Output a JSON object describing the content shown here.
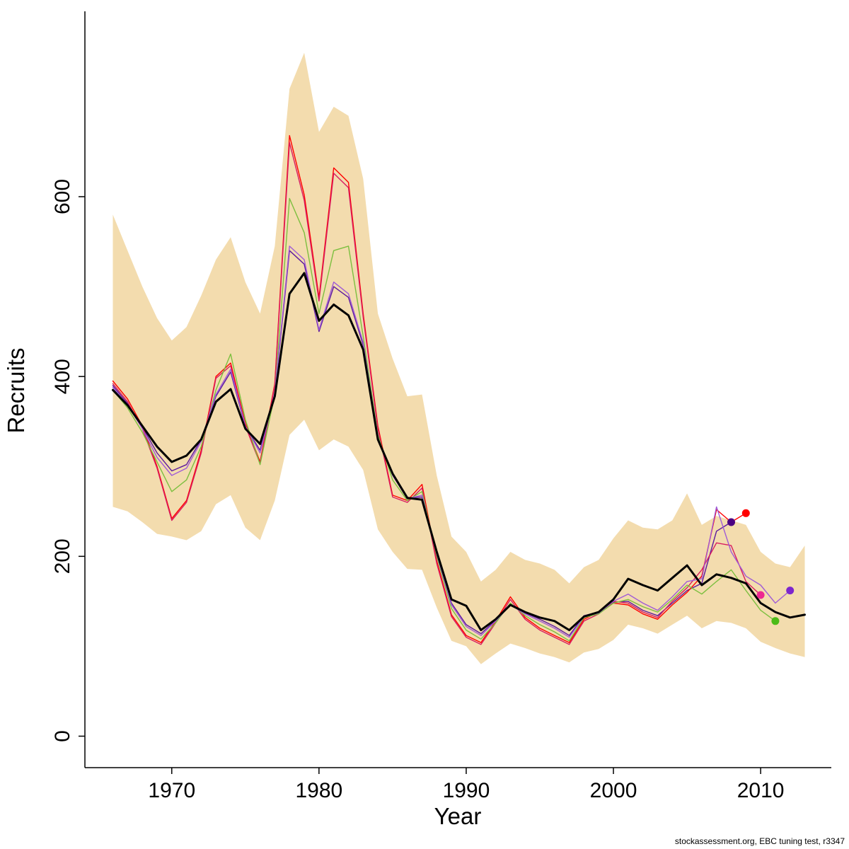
{
  "page": {
    "background": "#ffffff"
  },
  "footer": {
    "credit": "stockassessment.org, EBC tuning test, r3347"
  },
  "chart_data": {
    "type": "line",
    "title": "",
    "xlabel": "Year",
    "ylabel": "Recruits",
    "x_ticks": [
      1970,
      1980,
      1990,
      2000,
      2010
    ],
    "y_ticks": [
      0,
      200,
      400,
      600
    ],
    "xlim": [
      1964.1,
      2014.8
    ],
    "ylim": [
      -35,
      803
    ],
    "grid": false,
    "legend": "none",
    "band": {
      "label": "confidence-band",
      "color": "#F3DCAE",
      "years_start": 1966,
      "upper": [
        580,
        540,
        500,
        465,
        440,
        455,
        490,
        530,
        555,
        505,
        470,
        545,
        720,
        760,
        672,
        700,
        690,
        620,
        470,
        420,
        378,
        380,
        290,
        222,
        205,
        172,
        185,
        205,
        196,
        192,
        185,
        170,
        188,
        196,
        220,
        240,
        232,
        230,
        240,
        270,
        235,
        245,
        240,
        235,
        205,
        192,
        188,
        212
      ],
      "lower": [
        255,
        250,
        238,
        225,
        222,
        218,
        228,
        258,
        268,
        232,
        218,
        262,
        335,
        352,
        318,
        330,
        322,
        296,
        230,
        205,
        186,
        185,
        143,
        106,
        100,
        80,
        92,
        103,
        98,
        92,
        88,
        82,
        93,
        97,
        107,
        124,
        120,
        114,
        124,
        134,
        120,
        128,
        126,
        120,
        105,
        98,
        92,
        88
      ]
    },
    "series": [
      {
        "id": "retro-2008",
        "label": "retrospective peel ending 2008",
        "color": "#5D1A9E",
        "dot_color": "#4B0082",
        "width": 1.4,
        "end_dot": true,
        "years_start": 1966,
        "values": [
          390,
          370,
          344,
          315,
          295,
          302,
          330,
          378,
          405,
          344,
          318,
          380,
          540,
          525,
          450,
          500,
          488,
          435,
          330,
          292,
          265,
          266,
          204,
          148,
          124,
          114,
          129,
          147,
          137,
          130,
          122,
          112,
          134,
          138,
          149,
          150,
          140,
          134,
          148,
          162,
          170,
          228,
          238
        ]
      },
      {
        "id": "retro-2009",
        "label": "retrospective peel ending 2009",
        "color": "#FF0000",
        "dot_color": "#FF0000",
        "width": 1.4,
        "end_dot": true,
        "years_start": 1966,
        "values": [
          395,
          375,
          345,
          300,
          242,
          262,
          318,
          400,
          415,
          348,
          305,
          392,
          668,
          602,
          488,
          632,
          616,
          470,
          345,
          268,
          262,
          280,
          195,
          135,
          112,
          104,
          128,
          155,
          132,
          120,
          112,
          104,
          130,
          138,
          148,
          146,
          136,
          130,
          146,
          160,
          178,
          252,
          238,
          248
        ]
      },
      {
        "id": "retro-2010",
        "label": "retrospective peel ending 2010",
        "color": "#D81B60",
        "dot_color": "#ED2891",
        "width": 1.4,
        "end_dot": true,
        "years_start": 1966,
        "values": [
          392,
          372,
          342,
          298,
          240,
          260,
          315,
          398,
          412,
          345,
          303,
          390,
          660,
          596,
          484,
          626,
          610,
          466,
          342,
          266,
          260,
          276,
          192,
          133,
          110,
          102,
          126,
          152,
          130,
          118,
          110,
          102,
          128,
          136,
          150,
          148,
          138,
          132,
          150,
          165,
          185,
          215,
          212,
          172,
          157
        ]
      },
      {
        "id": "retro-2011",
        "label": "retrospective peel ending 2011",
        "color": "#7CBF3F",
        "dot_color": "#4CBB17",
        "width": 1.4,
        "end_dot": true,
        "years_start": 1966,
        "values": [
          385,
          365,
          338,
          305,
          272,
          285,
          322,
          385,
          425,
          352,
          302,
          380,
          598,
          560,
          470,
          540,
          545,
          445,
          335,
          285,
          262,
          272,
          200,
          142,
          118,
          108,
          126,
          148,
          134,
          124,
          116,
          106,
          132,
          136,
          148,
          152,
          144,
          138,
          152,
          168,
          158,
          172,
          185,
          162,
          140,
          128
        ]
      },
      {
        "id": "retro-2012",
        "label": "retrospective peel ending 2012",
        "color": "#A05BD6",
        "dot_color": "#7D26CD",
        "width": 1.4,
        "end_dot": true,
        "years_start": 1966,
        "values": [
          388,
          368,
          342,
          310,
          290,
          298,
          328,
          380,
          408,
          345,
          315,
          382,
          545,
          530,
          452,
          505,
          492,
          438,
          332,
          290,
          264,
          268,
          202,
          146,
          122,
          112,
          128,
          146,
          136,
          128,
          120,
          110,
          133,
          137,
          150,
          158,
          148,
          140,
          155,
          172,
          175,
          255,
          205,
          178,
          168,
          148,
          162
        ]
      },
      {
        "id": "estimate",
        "label": "current assessment estimate",
        "color": "#000000",
        "width": 3,
        "end_dot": false,
        "years_start": 1966,
        "values": [
          385,
          368,
          345,
          322,
          305,
          312,
          330,
          372,
          386,
          342,
          325,
          378,
          492,
          515,
          462,
          480,
          468,
          430,
          330,
          292,
          265,
          263,
          205,
          152,
          145,
          118,
          130,
          146,
          138,
          132,
          128,
          118,
          133,
          138,
          152,
          175,
          168,
          162,
          176,
          190,
          168,
          180,
          176,
          170,
          148,
          138,
          132,
          135
        ]
      }
    ]
  }
}
